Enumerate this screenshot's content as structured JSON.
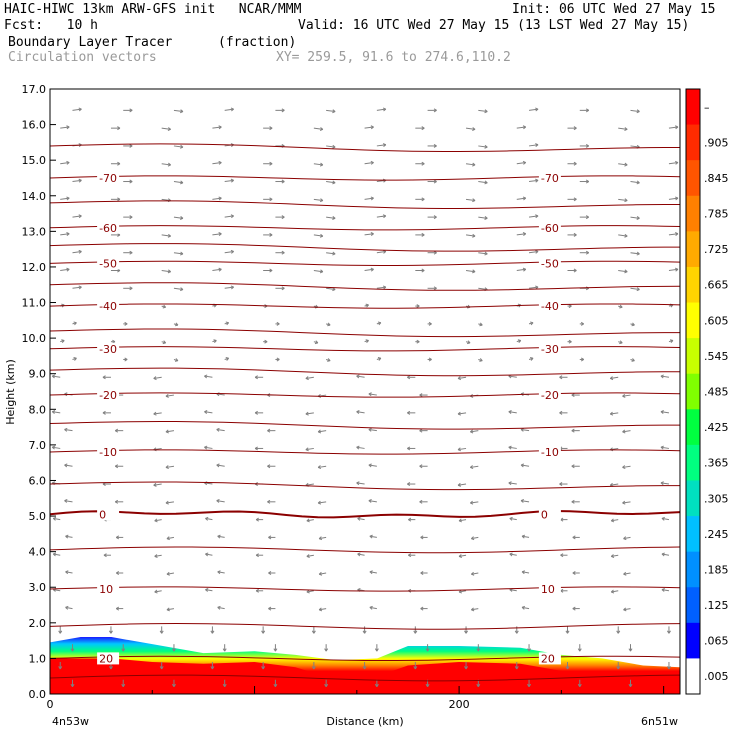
{
  "header": {
    "title_line": "HAIC-HIWC 13km ARW-GFS init   NCAR/MMM",
    "init": "Init: 06 UTC Wed 27 May 15",
    "fcst": "Fcst:   10 h",
    "valid": "Valid: 16 UTC Wed 27 May 15 (13 LST Wed 27 May 15)",
    "field": "Boundary Layer Tracer",
    "units": "(fraction)",
    "overlay": "Circulation vectors",
    "xy": "XY= 259.5, 91.6 to 274.6,110.2"
  },
  "chart_data": {
    "type": "heatmap",
    "ylabel": "Height (km)",
    "xlabel": "Distance (km)",
    "xlim": [
      0,
      308
    ],
    "ylim": [
      0,
      17
    ],
    "yticks": [
      "0.0",
      "1.0",
      "2.0",
      "3.0",
      "4.0",
      "5.0",
      "6.0",
      "7.0",
      "8.0",
      "9.0",
      "10.0",
      "11.0",
      "12.0",
      "13.0",
      "14.0",
      "15.0",
      "16.0",
      "17.0"
    ],
    "xticks": [
      {
        "value": 0,
        "label": "0"
      },
      {
        "value": 200,
        "label": "200"
      }
    ],
    "x_end_labels": {
      "left": "4n53w",
      "right": "6n51w"
    },
    "colorbar": {
      "labels": [
        "–",
        ".905",
        ".845",
        ".785",
        ".725",
        ".665",
        ".605",
        ".545",
        ".485",
        ".425",
        ".365",
        ".305",
        ".245",
        ".185",
        ".125",
        ".065",
        ".005"
      ],
      "colors": [
        "#ff0000",
        "#ff2b00",
        "#ff5500",
        "#ff8000",
        "#ffaa00",
        "#ffd400",
        "#ffff00",
        "#c8ff00",
        "#80ff00",
        "#00ff40",
        "#00ff80",
        "#00e0c0",
        "#00c0ff",
        "#0090ff",
        "#0060ff",
        "#0000ff",
        "#ffffff"
      ]
    },
    "temperature_contours": [
      {
        "label": "-70",
        "h": 14.5
      },
      {
        "label": "-60",
        "h": 13.1
      },
      {
        "label": "-50",
        "h": 12.1
      },
      {
        "label": "-40",
        "h": 10.9
      },
      {
        "label": "-30",
        "h": 9.7
      },
      {
        "label": "-20",
        "h": 8.4
      },
      {
        "label": "-10",
        "h": 6.8
      },
      {
        "label": "0",
        "h": 5.05
      },
      {
        "label": "10",
        "h": 2.95
      },
      {
        "label": "20",
        "h": 1.0
      }
    ],
    "tracer_top_km": [
      [
        0,
        1.45
      ],
      [
        15,
        1.6
      ],
      [
        30,
        1.6
      ],
      [
        50,
        1.4
      ],
      [
        75,
        1.15
      ],
      [
        100,
        1.2
      ],
      [
        120,
        1.1
      ],
      [
        140,
        0.95
      ],
      [
        160,
        1.0
      ],
      [
        175,
        1.35
      ],
      [
        200,
        1.35
      ],
      [
        230,
        1.3
      ],
      [
        250,
        1.1
      ],
      [
        270,
        1.0
      ],
      [
        290,
        0.8
      ],
      [
        308,
        0.75
      ]
    ],
    "tracer_core_km": [
      [
        0,
        1.0
      ],
      [
        30,
        1.0
      ],
      [
        50,
        0.9
      ],
      [
        75,
        0.85
      ],
      [
        100,
        0.9
      ],
      [
        120,
        0.75
      ],
      [
        140,
        0.4
      ],
      [
        160,
        0.5
      ],
      [
        175,
        0.8
      ],
      [
        200,
        0.9
      ],
      [
        230,
        0.85
      ],
      [
        250,
        0.65
      ],
      [
        270,
        0.6
      ],
      [
        290,
        0.45
      ],
      [
        308,
        0.45
      ]
    ]
  }
}
